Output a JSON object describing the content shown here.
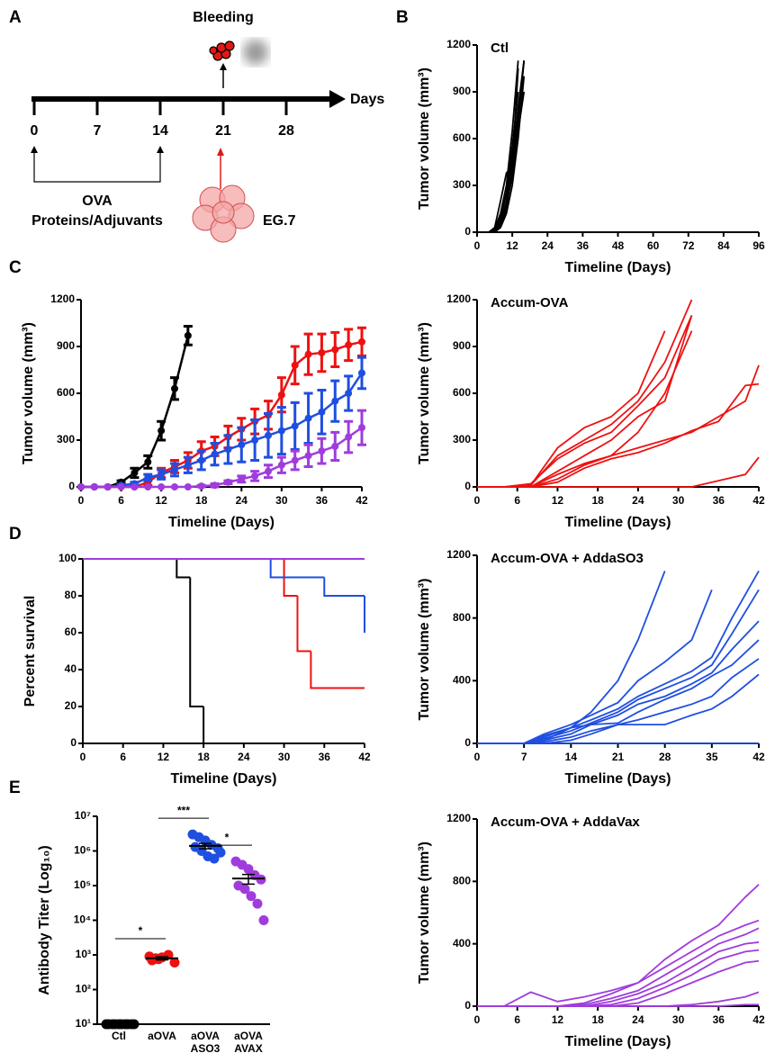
{
  "panel_labels": [
    "A",
    "B",
    "C",
    "D",
    "E"
  ],
  "diagram": {
    "top_label": "Bleeding",
    "axis_label": "Days",
    "ticks": [
      "0",
      "7",
      "14",
      "21",
      "28"
    ],
    "bracket_label_1": "OVA",
    "bracket_label_2": "Proteins/Adjuvants",
    "cell_label": "EG.7"
  },
  "chart_data": [
    {
      "type": "line",
      "title": "Ctl",
      "x_label": "Timeline (Days)",
      "y_label": "Tumor volume (mm³)",
      "color": "#000000",
      "xlim": [
        0,
        96
      ],
      "xticks": [
        0,
        12,
        24,
        36,
        48,
        60,
        72,
        84,
        96
      ],
      "ylim": [
        0,
        1200
      ],
      "yticks": [
        0,
        300,
        600,
        900,
        1200
      ],
      "x": [
        0,
        2,
        4,
        6,
        8,
        10,
        12,
        14,
        16
      ],
      "series": [
        {
          "values": [
            0,
            0,
            0,
            20,
            120,
            300,
            650,
            1100,
            null
          ]
        },
        {
          "values": [
            0,
            0,
            0,
            10,
            80,
            250,
            550,
            900,
            null
          ]
        },
        {
          "values": [
            0,
            0,
            0,
            5,
            50,
            200,
            450,
            800,
            1100
          ]
        },
        {
          "values": [
            0,
            0,
            0,
            30,
            200,
            380,
            420,
            1050,
            null
          ]
        },
        {
          "values": [
            0,
            0,
            0,
            0,
            40,
            150,
            400,
            700,
            1100
          ]
        },
        {
          "values": [
            0,
            0,
            0,
            10,
            60,
            180,
            350,
            650,
            900
          ]
        },
        {
          "values": [
            0,
            0,
            0,
            0,
            30,
            120,
            300,
            600,
            1000
          ]
        },
        {
          "values": [
            0,
            0,
            0,
            20,
            100,
            250,
            500,
            750,
            1100
          ]
        }
      ]
    },
    {
      "type": "line",
      "x_label": "Timeline (Days)",
      "y_label": "Tumor volume (mm³)",
      "xlim": [
        0,
        42
      ],
      "xticks": [
        0,
        6,
        12,
        18,
        24,
        30,
        36,
        42
      ],
      "ylim": [
        0,
        1200
      ],
      "yticks": [
        0,
        300,
        600,
        900,
        1200
      ],
      "x": [
        0,
        2,
        4,
        6,
        8,
        10,
        12,
        14,
        16,
        18,
        20,
        22,
        24,
        26,
        28,
        30,
        32,
        34,
        36,
        38,
        40,
        42
      ],
      "series": [
        {
          "color": "#000000",
          "values": [
            0,
            0,
            0,
            30,
            90,
            160,
            360,
            630,
            970,
            null,
            null,
            null,
            null,
            null,
            null,
            null,
            null,
            null,
            null,
            null,
            null,
            null
          ],
          "errors": [
            0,
            0,
            0,
            10,
            30,
            40,
            60,
            70,
            60,
            null,
            null,
            null,
            null,
            null,
            null,
            null,
            null,
            null,
            null,
            null,
            null,
            null
          ]
        },
        {
          "color": "#ee1111",
          "values": [
            0,
            0,
            0,
            0,
            0,
            30,
            90,
            130,
            170,
            230,
            260,
            320,
            370,
            420,
            460,
            590,
            780,
            850,
            860,
            880,
            910,
            930
          ],
          "errors": [
            0,
            0,
            0,
            0,
            0,
            20,
            30,
            40,
            50,
            60,
            60,
            70,
            70,
            80,
            90,
            110,
            120,
            130,
            120,
            110,
            100,
            90
          ]
        },
        {
          "color": "#1f4fe0",
          "values": [
            0,
            0,
            0,
            10,
            20,
            60,
            80,
            110,
            140,
            170,
            210,
            240,
            270,
            300,
            330,
            360,
            390,
            440,
            480,
            550,
            600,
            730
          ],
          "errors": [
            0,
            0,
            0,
            5,
            10,
            20,
            30,
            40,
            50,
            60,
            70,
            90,
            110,
            130,
            140,
            150,
            150,
            160,
            140,
            130,
            110,
            100
          ]
        },
        {
          "color": "#a03cdc",
          "values": [
            0,
            0,
            0,
            0,
            0,
            0,
            0,
            0,
            0,
            5,
            10,
            30,
            50,
            70,
            100,
            140,
            170,
            200,
            230,
            260,
            320,
            380
          ],
          "errors": [
            0,
            0,
            0,
            0,
            0,
            0,
            0,
            0,
            0,
            5,
            10,
            10,
            20,
            30,
            40,
            50,
            60,
            70,
            80,
            90,
            100,
            110
          ]
        }
      ]
    },
    {
      "type": "line",
      "title": "Accum-OVA",
      "x_label": "Timeline (Days)",
      "y_label": "Tumor volume (mm³)",
      "color": "#ee1111",
      "xlim": [
        0,
        42
      ],
      "xticks": [
        0,
        6,
        12,
        18,
        24,
        30,
        36,
        42
      ],
      "ylim": [
        0,
        1200
      ],
      "yticks": [
        0,
        300,
        600,
        900,
        1200
      ],
      "x": [
        0,
        4,
        8,
        12,
        16,
        20,
        24,
        28,
        32,
        36,
        40,
        42
      ],
      "series": [
        {
          "values": [
            0,
            0,
            10,
            200,
            300,
            400,
            550,
            800,
            1200,
            null,
            null,
            null
          ]
        },
        {
          "values": [
            0,
            0,
            10,
            250,
            380,
            450,
            600,
            1000,
            null,
            null,
            null,
            null
          ]
        },
        {
          "values": [
            0,
            0,
            20,
            180,
            280,
            350,
            520,
            700,
            1100,
            null,
            null,
            null
          ]
        },
        {
          "values": [
            0,
            0,
            0,
            100,
            200,
            300,
            450,
            550,
            1100,
            null,
            null,
            null
          ]
        },
        {
          "values": [
            0,
            0,
            0,
            50,
            140,
            200,
            350,
            600,
            1000,
            null,
            null,
            null
          ]
        },
        {
          "values": [
            0,
            0,
            0,
            80,
            150,
            200,
            250,
            300,
            350,
            450,
            550,
            780
          ]
        },
        {
          "values": [
            0,
            0,
            0,
            30,
            120,
            180,
            220,
            280,
            360,
            420,
            650,
            660
          ]
        },
        {
          "values": [
            0,
            0,
            0,
            0,
            0,
            0,
            0,
            0,
            0,
            40,
            80,
            190
          ]
        }
      ]
    },
    {
      "type": "step",
      "x_label": "Timeline (Days)",
      "y_label": "Percent survival",
      "xlim": [
        0,
        42
      ],
      "xticks": [
        0,
        6,
        12,
        18,
        24,
        30,
        36,
        42
      ],
      "ylim": [
        0,
        100
      ],
      "yticks": [
        0,
        20,
        40,
        60,
        80,
        100
      ],
      "series": [
        {
          "color": "#000000",
          "x": [
            0,
            14,
            16,
            18
          ],
          "values": [
            100,
            90,
            20,
            0
          ]
        },
        {
          "color": "#ee1111",
          "x": [
            0,
            30,
            32,
            34,
            42
          ],
          "values": [
            100,
            80,
            50,
            30,
            30
          ]
        },
        {
          "color": "#1f4fe0",
          "x": [
            0,
            28,
            36,
            42
          ],
          "values": [
            100,
            90,
            80,
            60
          ]
        },
        {
          "color": "#a03cdc",
          "x": [
            0,
            42
          ],
          "values": [
            100,
            100
          ]
        }
      ]
    },
    {
      "type": "line",
      "title": "Accum-OVA + AddaSO3",
      "x_label": "Timeline (Days)",
      "y_label": "Tumor volume (mm³)",
      "color": "#1f4fe0",
      "xlim": [
        0,
        42
      ],
      "xticks": [
        0,
        7,
        14,
        21,
        28,
        35,
        42
      ],
      "ylim": [
        0,
        1200
      ],
      "yticks": [
        0,
        400,
        800,
        1200
      ],
      "x": [
        0,
        7,
        10,
        14,
        17,
        21,
        24,
        28,
        32,
        35,
        38,
        42
      ],
      "series": [
        {
          "values": [
            0,
            0,
            50,
            100,
            200,
            400,
            660,
            1100,
            null,
            null,
            null,
            null
          ]
        },
        {
          "values": [
            0,
            0,
            60,
            120,
            180,
            260,
            400,
            520,
            660,
            980,
            null,
            null
          ]
        },
        {
          "values": [
            0,
            0,
            40,
            100,
            150,
            220,
            300,
            380,
            460,
            550,
            800,
            1100
          ]
        },
        {
          "values": [
            0,
            0,
            30,
            80,
            130,
            200,
            280,
            350,
            420,
            500,
            700,
            980
          ]
        },
        {
          "values": [
            0,
            0,
            20,
            60,
            120,
            180,
            250,
            300,
            380,
            450,
            600,
            780
          ]
        },
        {
          "values": [
            0,
            0,
            20,
            100,
            120,
            130,
            200,
            280,
            350,
            430,
            500,
            660
          ]
        },
        {
          "values": [
            0,
            0,
            10,
            40,
            80,
            120,
            150,
            200,
            250,
            300,
            420,
            540
          ]
        },
        {
          "values": [
            0,
            0,
            0,
            20,
            60,
            120,
            120,
            120,
            180,
            220,
            300,
            440
          ]
        },
        {
          "values": [
            0,
            0,
            0,
            0,
            0,
            0,
            0,
            0,
            0,
            0,
            0,
            0
          ]
        }
      ]
    },
    {
      "type": "strip",
      "y_label": "Antibody Titer (Log₁₀)",
      "log_y": true,
      "ylim": [
        10,
        10000000
      ],
      "yticks": [
        {
          "value": 10,
          "label": "10¹"
        },
        {
          "value": 100,
          "label": "10²"
        },
        {
          "value": 1000,
          "label": "10³"
        },
        {
          "value": 10000,
          "label": "10⁴"
        },
        {
          "value": 100000,
          "label": "10⁵"
        },
        {
          "value": 1000000,
          "label": "10⁶"
        },
        {
          "value": 10000000,
          "label": "10⁷"
        }
      ],
      "categories": [
        "Ctl",
        "aOVA",
        "aOVA\nASO3",
        "aOVA\nAVAX"
      ],
      "colors": [
        "#000000",
        "#ee1111",
        "#1f4fe0",
        "#a03cdc"
      ],
      "groups": [
        [
          10,
          10,
          10,
          10,
          10,
          10,
          10,
          10,
          10,
          10
        ],
        [
          900,
          800,
          850,
          1000,
          600,
          700,
          750
        ],
        [
          3000000,
          2500000,
          2000000,
          1500000,
          1200000,
          1300000,
          1000000,
          700000,
          600000,
          900000
        ],
        [
          500000,
          400000,
          300000,
          200000,
          150000,
          100000,
          80000,
          50000,
          30000,
          10000
        ]
      ],
      "means": [
        10,
        800,
        1400000,
        160000
      ],
      "errors": [
        0,
        80,
        250000,
        50000
      ],
      "annotations": [
        "*",
        "***",
        "*"
      ]
    },
    {
      "type": "line",
      "title": "Accum-OVA + AddaVax",
      "x_label": "Timeline (Days)",
      "y_label": "Tumor volume (mm³)",
      "color": "#a03cdc",
      "xlim": [
        0,
        42
      ],
      "xticks": [
        0,
        6,
        12,
        18,
        24,
        30,
        36,
        42
      ],
      "ylim": [
        0,
        1200
      ],
      "yticks": [
        0,
        400,
        800,
        1200
      ],
      "x": [
        0,
        4,
        8,
        12,
        16,
        20,
        24,
        28,
        32,
        36,
        40,
        42
      ],
      "series": [
        {
          "values": [
            0,
            0,
            90,
            30,
            60,
            100,
            150,
            300,
            420,
            520,
            700,
            780
          ]
        },
        {
          "values": [
            0,
            0,
            0,
            0,
            20,
            80,
            150,
            250,
            350,
            450,
            520,
            550
          ]
        },
        {
          "values": [
            0,
            0,
            0,
            0,
            10,
            50,
            100,
            200,
            300,
            400,
            460,
            500
          ]
        },
        {
          "values": [
            0,
            0,
            0,
            0,
            0,
            30,
            80,
            150,
            250,
            350,
            400,
            410
          ]
        },
        {
          "values": [
            0,
            0,
            0,
            0,
            0,
            10,
            50,
            120,
            200,
            300,
            350,
            360
          ]
        },
        {
          "values": [
            0,
            0,
            0,
            0,
            0,
            0,
            20,
            80,
            150,
            220,
            280,
            290
          ]
        },
        {
          "values": [
            0,
            0,
            0,
            0,
            0,
            0,
            0,
            0,
            10,
            30,
            60,
            90
          ]
        },
        {
          "values": [
            0,
            0,
            0,
            0,
            0,
            0,
            0,
            0,
            0,
            0,
            10,
            10
          ]
        }
      ]
    }
  ]
}
